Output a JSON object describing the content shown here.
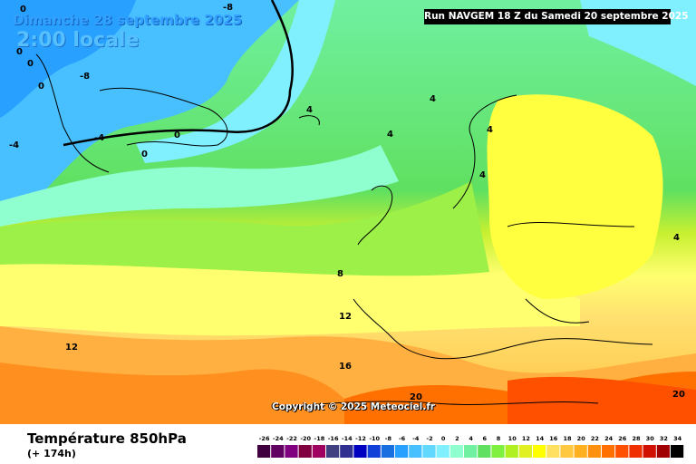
{
  "header": {
    "date": "Dimanche 28 septembre 2025",
    "local_time": "2:00 locale",
    "run": "Run NAVGEM 18 Z du Samedi 20 septembre 2025"
  },
  "footer": {
    "field": "Température 850hPa",
    "lead": "(+ 174h)",
    "copyright": "Copyright © 2025 Meteociel.fr"
  },
  "legend": {
    "labels": [
      "-26",
      "-24",
      "-22",
      "-20",
      "-18",
      "-16",
      "-14",
      "-12",
      "-10",
      "-8",
      "-6",
      "-4",
      "-2",
      "0",
      "2",
      "4",
      "6",
      "8",
      "10",
      "12",
      "14",
      "16",
      "18",
      "20",
      "22",
      "24",
      "26",
      "28",
      "30",
      "32",
      "34"
    ],
    "colors": [
      "#400040",
      "#600060",
      "#800080",
      "#800040",
      "#a00060",
      "#404080",
      "#303090",
      "#0000c0",
      "#1040d8",
      "#1870e0",
      "#28a0ff",
      "#48c0ff",
      "#60d8ff",
      "#80f0ff",
      "#90ffd0",
      "#70f0a0",
      "#60e060",
      "#80f040",
      "#b0f020",
      "#e0f020",
      "#ffff00",
      "#ffe060",
      "#ffc840",
      "#ffb020",
      "#ff9010",
      "#ff7000",
      "#ff5000",
      "#f03000",
      "#d01000",
      "#a00000",
      "#000000"
    ]
  },
  "contour_labels": [
    "-8",
    "0",
    "0",
    "0",
    "0",
    "-8",
    "-4",
    "-4",
    "0",
    "0",
    "4",
    "4",
    "4",
    "4",
    "4",
    "4",
    "8",
    "12",
    "12",
    "16",
    "20",
    "20"
  ]
}
